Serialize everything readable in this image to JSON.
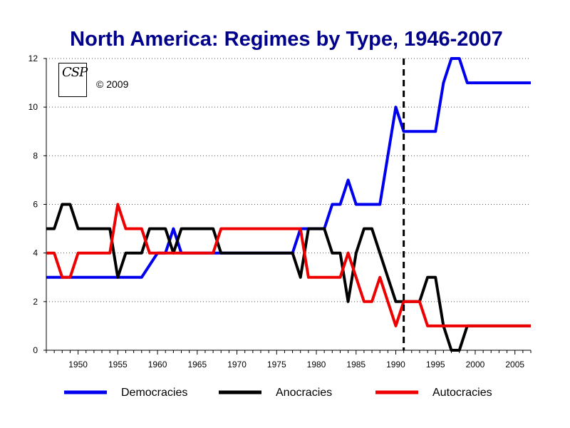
{
  "chart_data": {
    "type": "line",
    "title": "North America: Regimes by Type, 1946-2007",
    "xlabel": "",
    "ylabel": "",
    "xlim": [
      1946,
      2007
    ],
    "ylim": [
      0,
      12
    ],
    "yticks": [
      0,
      2,
      4,
      6,
      8,
      10,
      12
    ],
    "xticks": [
      1950,
      1955,
      1960,
      1965,
      1970,
      1975,
      1980,
      1985,
      1990,
      1995,
      2000,
      2005
    ],
    "grid": "horizontal dotted",
    "legend": "bottom",
    "reference_line": {
      "x": 1991,
      "style": "dashed"
    },
    "series": [
      {
        "name": "Democracies",
        "color": "#0000ee",
        "points": [
          [
            1946,
            3
          ],
          [
            1958,
            3
          ],
          [
            1960,
            4
          ],
          [
            1961,
            4
          ],
          [
            1962,
            5
          ],
          [
            1963,
            4
          ],
          [
            1966,
            4
          ],
          [
            1967,
            4
          ],
          [
            1977,
            4
          ],
          [
            1978,
            5
          ],
          [
            1981,
            5
          ],
          [
            1982,
            6
          ],
          [
            1983,
            6
          ],
          [
            1984,
            7
          ],
          [
            1985,
            6
          ],
          [
            1988,
            6
          ],
          [
            1990,
            10
          ],
          [
            1991,
            9
          ],
          [
            1995,
            9
          ],
          [
            1996,
            11
          ],
          [
            1997,
            12
          ],
          [
            1998,
            12
          ],
          [
            1999,
            11
          ],
          [
            2007,
            11
          ]
        ]
      },
      {
        "name": "Anocracies",
        "color": "#000000",
        "points": [
          [
            1946,
            5
          ],
          [
            1947,
            5
          ],
          [
            1948,
            6
          ],
          [
            1949,
            6
          ],
          [
            1950,
            5
          ],
          [
            1954,
            5
          ],
          [
            1955,
            3
          ],
          [
            1956,
            4
          ],
          [
            1958,
            4
          ],
          [
            1959,
            5
          ],
          [
            1961,
            5
          ],
          [
            1962,
            4
          ],
          [
            1963,
            5
          ],
          [
            1967,
            5
          ],
          [
            1968,
            4
          ],
          [
            1977,
            4
          ],
          [
            1978,
            3
          ],
          [
            1979,
            5
          ],
          [
            1981,
            5
          ],
          [
            1982,
            4
          ],
          [
            1983,
            4
          ],
          [
            1984,
            2
          ],
          [
            1985,
            4
          ],
          [
            1986,
            5
          ],
          [
            1987,
            5
          ],
          [
            1989,
            3
          ],
          [
            1990,
            2
          ],
          [
            1993,
            2
          ],
          [
            1994,
            3
          ],
          [
            1995,
            3
          ],
          [
            1996,
            1
          ],
          [
            1997,
            0
          ],
          [
            1998,
            0
          ],
          [
            1999,
            1
          ],
          [
            2007,
            1
          ]
        ]
      },
      {
        "name": "Autocracies",
        "color": "#ee0000",
        "points": [
          [
            1946,
            4
          ],
          [
            1947,
            4
          ],
          [
            1948,
            3
          ],
          [
            1949,
            3
          ],
          [
            1950,
            4
          ],
          [
            1954,
            4
          ],
          [
            1955,
            6
          ],
          [
            1956,
            5
          ],
          [
            1958,
            5
          ],
          [
            1959,
            4
          ],
          [
            1967,
            4
          ],
          [
            1968,
            5
          ],
          [
            1978,
            5
          ],
          [
            1979,
            3
          ],
          [
            1983,
            3
          ],
          [
            1984,
            4
          ],
          [
            1986,
            2
          ],
          [
            1987,
            2
          ],
          [
            1988,
            3
          ],
          [
            1990,
            1
          ],
          [
            1991,
            2
          ],
          [
            1993,
            2
          ],
          [
            1994,
            1
          ],
          [
            2007,
            1
          ]
        ]
      }
    ],
    "annotation": "© 2009",
    "logo_text": "CSP"
  }
}
